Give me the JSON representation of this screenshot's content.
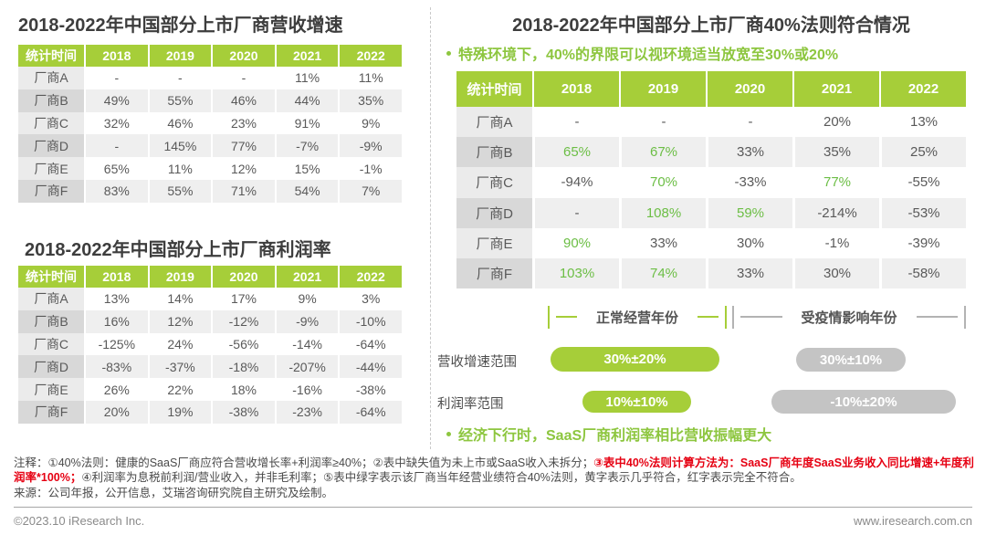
{
  "left": {
    "revenue_table": {
      "title": "2018-2022年中国部分上市厂商营收增速",
      "header": [
        "统计时间",
        "2018",
        "2019",
        "2020",
        "2021",
        "2022"
      ],
      "rows": [
        {
          "label": "厂商A",
          "values": [
            "-",
            "-",
            "-",
            "11%",
            "11%"
          ]
        },
        {
          "label": "厂商B",
          "values": [
            "49%",
            "55%",
            "46%",
            "44%",
            "35%"
          ]
        },
        {
          "label": "厂商C",
          "values": [
            "32%",
            "46%",
            "23%",
            "91%",
            "9%"
          ]
        },
        {
          "label": "厂商D",
          "values": [
            "-",
            "145%",
            "77%",
            "-7%",
            "-9%"
          ]
        },
        {
          "label": "厂商E",
          "values": [
            "65%",
            "11%",
            "12%",
            "15%",
            "-1%"
          ]
        },
        {
          "label": "厂商F",
          "values": [
            "83%",
            "55%",
            "71%",
            "54%",
            "7%"
          ]
        }
      ]
    },
    "profit_table": {
      "title": "2018-2022年中国部分上市厂商利润率",
      "header": [
        "统计时间",
        "2018",
        "2019",
        "2020",
        "2021",
        "2022"
      ],
      "rows": [
        {
          "label": "厂商A",
          "values": [
            "13%",
            "14%",
            "17%",
            "9%",
            "3%"
          ]
        },
        {
          "label": "厂商B",
          "values": [
            "16%",
            "12%",
            "-12%",
            "-9%",
            "-10%"
          ]
        },
        {
          "label": "厂商C",
          "values": [
            "-125%",
            "24%",
            "-56%",
            "-14%",
            "-64%"
          ]
        },
        {
          "label": "厂商D",
          "values": [
            "-83%",
            "-37%",
            "-18%",
            "-207%",
            "-44%"
          ]
        },
        {
          "label": "厂商E",
          "values": [
            "26%",
            "22%",
            "18%",
            "-16%",
            "-38%"
          ]
        },
        {
          "label": "厂商F",
          "values": [
            "20%",
            "19%",
            "-38%",
            "-23%",
            "-64%"
          ]
        }
      ]
    }
  },
  "right": {
    "title": "2018-2022年中国部分上市厂商40%法则符合情况",
    "subtitle": "特殊环境下，40%的界限可以视环境适当放宽至30%或20%",
    "rule40_table": {
      "header": [
        "统计时间",
        "2018",
        "2019",
        "2020",
        "2021",
        "2022"
      ],
      "rows": [
        {
          "label": "厂商A",
          "values": [
            "-",
            "-",
            "-",
            "20%",
            "13%"
          ],
          "green": [
            false,
            false,
            false,
            false,
            false
          ]
        },
        {
          "label": "厂商B",
          "values": [
            "65%",
            "67%",
            "33%",
            "35%",
            "25%"
          ],
          "green": [
            true,
            true,
            false,
            false,
            false
          ]
        },
        {
          "label": "厂商C",
          "values": [
            "-94%",
            "70%",
            "-33%",
            "77%",
            "-55%"
          ],
          "green": [
            false,
            true,
            false,
            true,
            false
          ]
        },
        {
          "label": "厂商D",
          "values": [
            "-",
            "108%",
            "59%",
            "-214%",
            "-53%"
          ],
          "green": [
            false,
            true,
            true,
            false,
            false
          ]
        },
        {
          "label": "厂商E",
          "values": [
            "90%",
            "33%",
            "30%",
            "-1%",
            "-39%"
          ],
          "green": [
            true,
            false,
            false,
            false,
            false
          ]
        },
        {
          "label": "厂商F",
          "values": [
            "103%",
            "74%",
            "33%",
            "30%",
            "-58%"
          ],
          "green": [
            true,
            true,
            false,
            false,
            false
          ]
        }
      ]
    },
    "period_normal": "正常经营年份",
    "period_covid": "受疫情影响年份",
    "range_rows": [
      {
        "label": "营收增速范围",
        "normal": "30%±20%",
        "covid": "30%±10%"
      },
      {
        "label": "利润率范围",
        "normal": "10%±10%",
        "covid": "-10%±20%"
      }
    ],
    "bottom_note": "经济下行时，SaaS厂商利润率相比营收振幅更大"
  },
  "notes": {
    "segments": [
      {
        "text": "注释：①40%法则：健康的SaaS厂商应符合营收增长率+利润率≥40%；②表中缺失值为未上市或SaaS收入未拆分；",
        "red": false
      },
      {
        "text": "③表中40%法则计算方法为：SaaS厂商年度SaaS业务收入同比增速+年度利润率*100%；",
        "red": true
      },
      {
        "text": "④利润率为息税前利润/营业收入，并非毛利率；⑤表中绿字表示该厂商当年经营业绩符合40%法则，黄字表示几乎符合，红字表示完全不符合。",
        "red": false
      }
    ],
    "source": "来源：公司年报，公开信息，艾瑞咨询研究院自主研究及绘制。"
  },
  "footer": {
    "copyright": "©2023.10 iResearch Inc.",
    "website": "www.iresearch.com.cn"
  },
  "colors": {
    "green_header": "#a6ce39",
    "green_text": "#8dc63f",
    "cell_green": "#6cbe45",
    "gray_pill": "#c4c4c4",
    "note_red": "#e60012"
  }
}
